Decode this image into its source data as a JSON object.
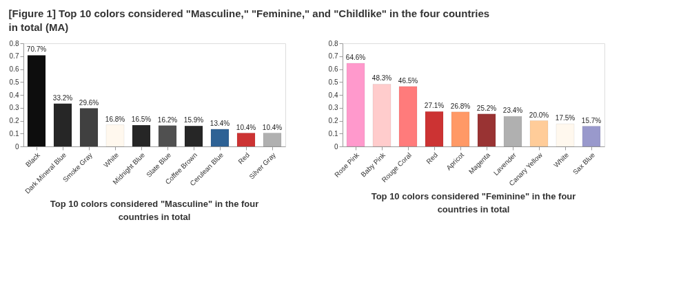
{
  "chart_data": [
    {
      "type": "bar",
      "title": "[Figure 1] Top 10 colors considered \"Masculine,\" \"Feminine,\" and \"Childlike\" in the four countries in total (MA)",
      "annotations": [
        "Top 10 colors considered \"Masculine\" in the four countries in total"
      ],
      "categories": [
        "Black",
        "Dark Mineral Blue",
        "Smoke Gray",
        "White",
        "Midnight Blue",
        "Slate Blue",
        "Coffee Brown",
        "Cerulean Blue",
        "Red",
        "Silver Gray"
      ],
      "values": [
        0.707,
        0.332,
        0.296,
        0.168,
        0.165,
        0.162,
        0.159,
        0.134,
        0.104,
        0.104
      ],
      "value_labels": [
        "70.7%",
        "33.2%",
        "29.6%",
        "16.8%",
        "16.5%",
        "16.2%",
        "15.9%",
        "13.4%",
        "10.4%",
        "10.4%"
      ],
      "colors": [
        "#0d0d0d",
        "#262626",
        "#404040",
        "#fff8ee",
        "#262626",
        "#505050",
        "#262626",
        "#2e6295",
        "#cc3333",
        "#b0b0b0"
      ],
      "ylim": [
        0,
        0.8
      ],
      "yticks": [
        0,
        0.1,
        0.2,
        0.3,
        0.4,
        0.5,
        0.6,
        0.7,
        0.8
      ],
      "grid": false
    },
    {
      "type": "bar",
      "annotations": [
        "Top 10 colors considered \"Feminine\" in the four countries in total"
      ],
      "categories": [
        "Rose Pink",
        "Baby Pink",
        "Rouge Coral",
        "Red",
        "Apricot",
        "Magenta",
        "Lavender",
        "Canary Yellow",
        "White",
        "Sax Blue"
      ],
      "values": [
        0.646,
        0.483,
        0.465,
        0.271,
        0.268,
        0.252,
        0.234,
        0.2,
        0.175,
        0.157
      ],
      "value_labels": [
        "64.6%",
        "48.3%",
        "46.5%",
        "27.1%",
        "26.8%",
        "25.2%",
        "23.4%",
        "20.0%",
        "17.5%",
        "15.7%"
      ],
      "colors": [
        "#ff99cc",
        "#ffcccc",
        "#ff7b7b",
        "#cc3333",
        "#ff9966",
        "#993333",
        "#b0b0b0",
        "#ffcc99",
        "#fff8ee",
        "#9999cc"
      ],
      "ylim": [
        0,
        0.8
      ],
      "yticks": [
        0,
        0.1,
        0.2,
        0.3,
        0.4,
        0.5,
        0.6,
        0.7,
        0.8
      ],
      "grid": false
    }
  ]
}
